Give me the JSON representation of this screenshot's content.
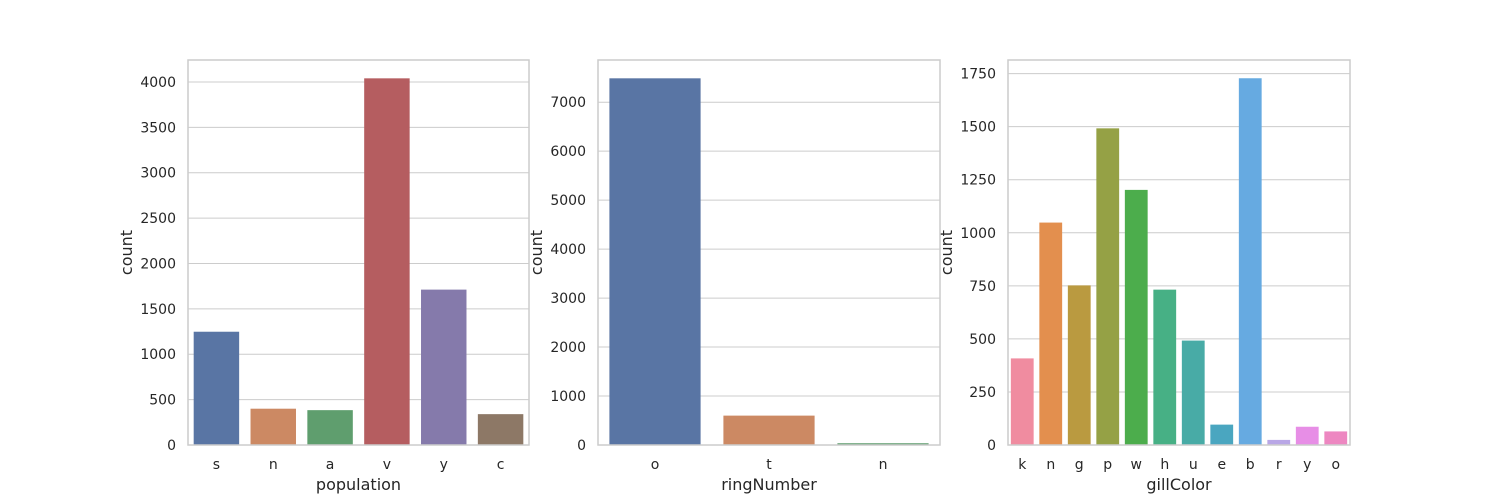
{
  "chart_data": [
    {
      "type": "bar",
      "xlabel": "population",
      "ylabel": "count",
      "categories": [
        "s",
        "n",
        "a",
        "v",
        "y",
        "c"
      ],
      "values": [
        1248,
        400,
        384,
        4040,
        1712,
        340
      ],
      "colors": [
        "#5975a4",
        "#cc8963",
        "#5f9e6e",
        "#b55d60",
        "#857aab",
        "#8d7866"
      ],
      "ylim": [
        0,
        4242
      ],
      "yticks": [
        0,
        500,
        1000,
        1500,
        2000,
        2500,
        3000,
        3500,
        4000
      ],
      "grid": "horizontal"
    },
    {
      "type": "bar",
      "xlabel": "ringNumber",
      "ylabel": "count",
      "categories": [
        "o",
        "t",
        "n"
      ],
      "values": [
        7488,
        600,
        36
      ],
      "colors": [
        "#5975a4",
        "#cc8963",
        "#5f9e6e"
      ],
      "ylim": [
        0,
        7862
      ],
      "yticks": [
        0,
        1000,
        2000,
        3000,
        4000,
        5000,
        6000,
        7000
      ],
      "grid": "horizontal"
    },
    {
      "type": "bar",
      "xlabel": "gillColor",
      "ylabel": "count",
      "categories": [
        "k",
        "n",
        "g",
        "p",
        "w",
        "h",
        "u",
        "e",
        "b",
        "r",
        "y",
        "o"
      ],
      "values": [
        408,
        1048,
        752,
        1492,
        1202,
        732,
        492,
        96,
        1728,
        24,
        86,
        64
      ],
      "colors": [
        "#f08ca0",
        "#e38f4e",
        "#ba9a40",
        "#95a145",
        "#4cad4c",
        "#47b085",
        "#48aba6",
        "#4aa6c0",
        "#66aae1",
        "#b9a7e6",
        "#e78ee6",
        "#ed87c1"
      ],
      "ylim": [
        0,
        1814
      ],
      "yticks": [
        0,
        250,
        500,
        750,
        1000,
        1250,
        1500,
        1750
      ],
      "grid": "horizontal"
    }
  ]
}
